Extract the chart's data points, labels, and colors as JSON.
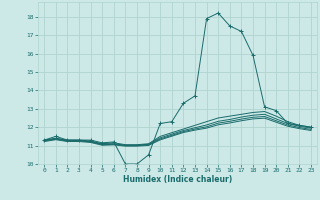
{
  "title": "",
  "xlabel": "Humidex (Indice chaleur)",
  "xlim": [
    -0.5,
    23.5
  ],
  "ylim": [
    10,
    18.8
  ],
  "yticks": [
    10,
    11,
    12,
    13,
    14,
    15,
    16,
    17,
    18
  ],
  "xticks": [
    0,
    1,
    2,
    3,
    4,
    5,
    6,
    7,
    8,
    9,
    10,
    11,
    12,
    13,
    14,
    15,
    16,
    17,
    18,
    19,
    20,
    21,
    22,
    23
  ],
  "bg_color": "#cce9e7",
  "grid_color": "#b0d4d0",
  "line_color": "#1a6b6b",
  "lines": [
    {
      "x": [
        0,
        1,
        2,
        3,
        4,
        5,
        6,
        7,
        8,
        9,
        10,
        11,
        12,
        13,
        14,
        15,
        16,
        17,
        18,
        19,
        20,
        21,
        22,
        23
      ],
      "y": [
        11.3,
        11.5,
        11.3,
        11.3,
        11.3,
        11.15,
        11.2,
        10.0,
        10.0,
        10.5,
        12.2,
        12.3,
        13.3,
        13.7,
        17.9,
        18.2,
        17.5,
        17.2,
        15.9,
        13.1,
        12.9,
        12.2,
        12.1,
        12.0
      ],
      "marker": "+"
    },
    {
      "x": [
        0,
        1,
        2,
        3,
        4,
        5,
        6,
        7,
        8,
        9,
        10,
        11,
        12,
        13,
        14,
        15,
        16,
        17,
        18,
        19,
        20,
        21,
        22,
        23
      ],
      "y": [
        11.3,
        11.4,
        11.3,
        11.3,
        11.25,
        11.1,
        11.15,
        11.05,
        11.05,
        11.1,
        11.5,
        11.7,
        11.9,
        12.1,
        12.3,
        12.5,
        12.6,
        12.7,
        12.8,
        12.85,
        12.6,
        12.3,
        12.1,
        12.0
      ],
      "marker": null
    },
    {
      "x": [
        0,
        1,
        2,
        3,
        4,
        5,
        6,
        7,
        8,
        9,
        10,
        11,
        12,
        13,
        14,
        15,
        16,
        17,
        18,
        19,
        20,
        21,
        22,
        23
      ],
      "y": [
        11.28,
        11.38,
        11.28,
        11.28,
        11.22,
        11.08,
        11.1,
        11.02,
        11.02,
        11.07,
        11.42,
        11.62,
        11.82,
        11.97,
        12.12,
        12.32,
        12.42,
        12.55,
        12.65,
        12.7,
        12.45,
        12.2,
        12.05,
        11.95
      ],
      "marker": null
    },
    {
      "x": [
        0,
        1,
        2,
        3,
        4,
        5,
        6,
        7,
        8,
        9,
        10,
        11,
        12,
        13,
        14,
        15,
        16,
        17,
        18,
        19,
        20,
        21,
        22,
        23
      ],
      "y": [
        11.25,
        11.35,
        11.25,
        11.25,
        11.2,
        11.05,
        11.07,
        11.0,
        11.0,
        11.04,
        11.36,
        11.56,
        11.76,
        11.9,
        12.02,
        12.22,
        12.32,
        12.44,
        12.54,
        12.58,
        12.35,
        12.12,
        11.98,
        11.88
      ],
      "marker": null
    },
    {
      "x": [
        0,
        1,
        2,
        3,
        4,
        5,
        6,
        7,
        8,
        9,
        10,
        11,
        12,
        13,
        14,
        15,
        16,
        17,
        18,
        19,
        20,
        21,
        22,
        23
      ],
      "y": [
        11.22,
        11.32,
        11.22,
        11.22,
        11.17,
        11.02,
        11.04,
        10.97,
        10.97,
        11.01,
        11.31,
        11.51,
        11.71,
        11.84,
        11.95,
        12.13,
        12.23,
        12.35,
        12.45,
        12.49,
        12.27,
        12.05,
        11.92,
        11.82
      ],
      "marker": null
    }
  ]
}
